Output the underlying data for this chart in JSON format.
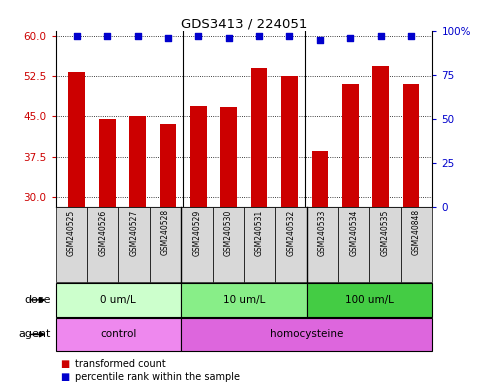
{
  "title": "GDS3413 / 224051",
  "samples": [
    "GSM240525",
    "GSM240526",
    "GSM240527",
    "GSM240528",
    "GSM240529",
    "GSM240530",
    "GSM240531",
    "GSM240532",
    "GSM240533",
    "GSM240534",
    "GSM240535",
    "GSM240848"
  ],
  "transformed_count": [
    53.2,
    44.6,
    45.0,
    43.5,
    47.0,
    46.8,
    54.0,
    52.5,
    38.5,
    51.0,
    54.5,
    51.0
  ],
  "percentile_rank": [
    97,
    97,
    97,
    96,
    97,
    96,
    97,
    97,
    95,
    96,
    97,
    97
  ],
  "bar_color": "#cc0000",
  "dot_color": "#0000cc",
  "ylim_left": [
    28,
    61
  ],
  "ylim_right": [
    0,
    100
  ],
  "yticks_left": [
    30,
    37.5,
    45,
    52.5,
    60
  ],
  "yticks_right": [
    0,
    25,
    50,
    75,
    100
  ],
  "dose_groups": [
    {
      "label": "0 um/L",
      "start": 0,
      "end": 4,
      "color": "#ccffcc"
    },
    {
      "label": "10 um/L",
      "start": 4,
      "end": 8,
      "color": "#88ee88"
    },
    {
      "label": "100 um/L",
      "start": 8,
      "end": 12,
      "color": "#44cc44"
    }
  ],
  "agent_groups": [
    {
      "label": "control",
      "start": 0,
      "end": 4,
      "color": "#ee88ee"
    },
    {
      "label": "homocysteine",
      "start": 4,
      "end": 12,
      "color": "#dd66dd"
    }
  ],
  "dose_label": "dose",
  "agent_label": "agent",
  "legend_items": [
    {
      "label": "transformed count",
      "color": "#cc0000"
    },
    {
      "label": "percentile rank within the sample",
      "color": "#0000cc"
    }
  ],
  "sample_bg": "#d8d8d8",
  "bar_width": 0.55
}
